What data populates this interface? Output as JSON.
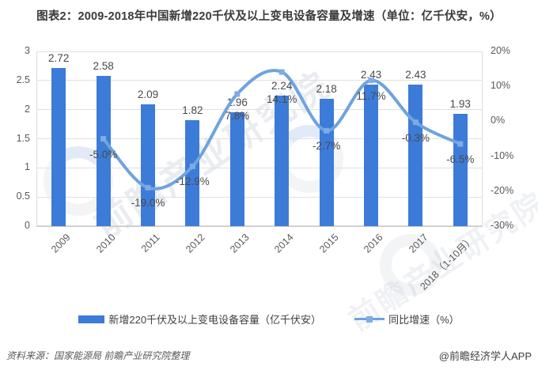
{
  "title": "图表2：2009-2018年中国新增220千伏及以上变电设备容量及增速（单位：亿千伏安，%）",
  "chart_data": {
    "type": "bar+line",
    "categories": [
      "2009",
      "2010",
      "2011",
      "2012",
      "2013",
      "2014",
      "2015",
      "2016",
      "2017",
      "2018（1-10月）"
    ],
    "series": [
      {
        "name": "新增220千伏及以上变电设备容量（亿千伏安）",
        "type": "bar",
        "axis": "left",
        "color": "#3c7bd8",
        "values": [
          2.72,
          2.58,
          2.09,
          1.82,
          1.96,
          2.24,
          2.18,
          2.43,
          2.43,
          1.93
        ],
        "labels": [
          "2.72",
          "2.58",
          "2.09",
          "1.82",
          "1.96",
          "2.24",
          "2.18",
          "2.43",
          "2.43",
          "1.93"
        ]
      },
      {
        "name": "同比增速（%）",
        "type": "line",
        "axis": "right",
        "color": "#6fa3df",
        "marker_color": "#7eace3",
        "values": [
          null,
          -5.0,
          -19.0,
          -12.9,
          7.8,
          14.1,
          -2.7,
          11.7,
          -0.3,
          -6.5
        ],
        "labels": [
          null,
          "-5.0%",
          "-19.0%",
          "-12.9%",
          "7.8%",
          "14.1%",
          "-2.7%",
          "11.7%",
          "-0.3%",
          "-6.5%"
        ]
      }
    ],
    "left_axis": {
      "min": 0,
      "max": 3,
      "tick_values": [
        0,
        0.5,
        1,
        1.5,
        2,
        2.5,
        3
      ],
      "tick_labels": [
        "0",
        "0.5",
        "1",
        "1.5",
        "2",
        "2.5",
        "3"
      ]
    },
    "right_axis": {
      "min": -30,
      "max": 20,
      "tick_values": [
        20,
        10,
        0,
        -10,
        -20,
        -30
      ],
      "tick_labels": [
        "20%",
        "10%",
        "0%",
        "-10%",
        "-20%",
        "-30%"
      ]
    },
    "grid": true,
    "legend_position": "bottom"
  },
  "watermark": {
    "brand_text": "前瞻产业研究院"
  },
  "footer": {
    "source": "资料来源：国家能源局  前瞻产业研究院整理",
    "credit": "@前瞻经济学人APP"
  }
}
